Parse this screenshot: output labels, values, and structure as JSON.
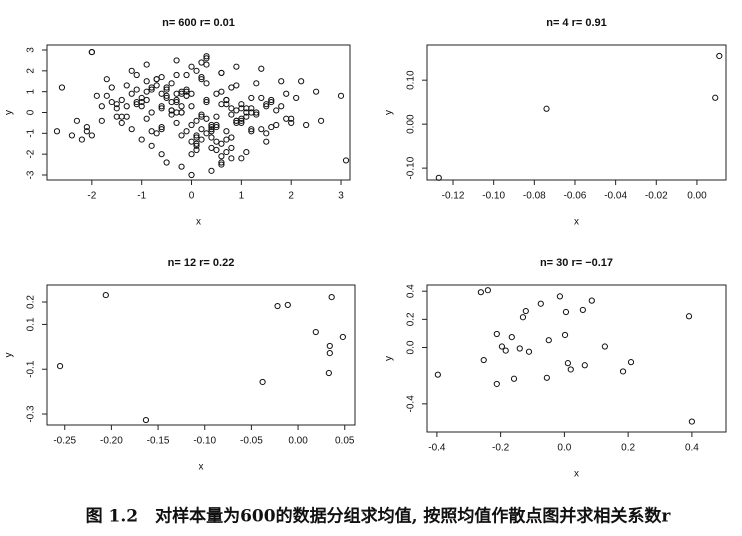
{
  "chart_data": [
    {
      "type": "scatter",
      "title": "n= 600  r= 0.01",
      "x_label": "x",
      "y_label": "y",
      "xlim": [
        -2.9,
        3.18
      ],
      "ylim": [
        -3.24,
        3.24
      ],
      "xticks": [
        -2,
        -1,
        0,
        1,
        2,
        3
      ],
      "yticks": [
        -3,
        -2,
        -1,
        0,
        1,
        2,
        3
      ],
      "color": "#111111",
      "x": [
        0.3,
        -1.2,
        0.8,
        -0.4,
        1.5,
        0.1,
        -0.9,
        2.1,
        -0.2,
        0.6,
        -1.7,
        0.4,
        1.1,
        -0.6,
        0.0,
        -2.6,
        0.9,
        -0.3,
        1.3,
        -1.0,
        0.5,
        -0.1,
        -1.4,
        0.7,
        1.8,
        -0.8,
        0.2,
        -0.5,
        1.0,
        -2.0,
        0.3,
        0.9,
        -1.1,
        0.6,
        -0.3,
        1.6,
        -0.7,
        0.1,
        2.5,
        -1.5,
        -0.2,
        0.4,
        1.2,
        -0.9,
        0.0,
        -1.8,
        0.7,
        -0.4,
        1.4,
        0.2,
        -1.3,
        0.8,
        -0.6,
        3.0,
        0.5,
        -0.1,
        -2.2,
        1.0,
        0.3,
        -0.8,
        1.7,
        -0.3,
        0.6,
        -1.0,
        0.1,
        1.9,
        -0.5,
        0.4,
        -1.6,
        0.9,
        -0.2,
        1.3,
        -2.4,
        0.7,
        -0.7,
        0.2,
        1.1,
        -1.2,
        0.0,
        0.5,
        -0.4,
        0.8,
        -1.9,
        1.5,
        0.3,
        -0.6,
        2.3,
        -0.1,
        0.6,
        -1.1,
        1.0,
        -0.3,
        0.4,
        -2.1,
        1.2,
        -0.8,
        0.1,
        0.9,
        -1.4,
        3.1,
        0.2,
        -0.9,
        1.4,
        -0.2,
        0.7,
        -1.5,
        0.0,
        1.8,
        -0.6,
        0.5,
        -1.0,
        0.3,
        2.0,
        -0.4,
        0.8,
        -1.7,
        1.1,
        -0.1,
        0.6,
        -2.0,
        -0.5,
        1.2,
        0.1,
        -1.3,
        0.9,
        -0.3,
        1.6,
        0.4,
        -0.8,
        2.6,
        -0.2,
        0.7,
        -1.1,
        0.2,
        1.3,
        -0.6,
        0.0,
        -2.7,
        0.5,
        1.0,
        -1.2,
        0.3,
        -0.4,
        1.7,
        0.6,
        -1.8,
        0.1,
        1.0,
        -0.7,
        0.4,
        -0.1,
        1.5,
        -1.4,
        0.8,
        -0.5,
        2.2,
        0.2,
        -0.9,
        1.2,
        -0.3,
        0.9,
        -1.6,
        0.5,
        -0.2,
        1.4,
        -0.7,
        0.3,
        -2.3,
        1.1,
        0.0,
        -0.4,
        0.7,
        -1.0,
        1.9,
        -0.6,
        0.2,
        -1.3,
        0.6,
        -0.1,
        1.5,
        -0.8,
        0.4,
        -1.5,
        1.0,
        0.1,
        -0.3,
        2.0,
        -1.1,
        0.8,
        -0.5,
        0.3,
        -2.0,
        1.2,
        -0.2,
        0.6,
        -0.9,
        1.6,
        0.0,
        -0.6,
        -2.1
      ],
      "values": [
        0.5,
        -0.8,
        1.2,
        0.1,
        -1.4,
        2.0,
        -0.3,
        0.7,
        -1.1,
        0.4,
        1.6,
        -0.6,
        0.2,
        -2.0,
        0.9,
        1.2,
        -0.5,
        0.0,
        1.4,
        -1.3,
        -0.2,
        1.8,
        0.6,
        -0.9,
        0.3,
        -1.6,
        2.4,
        0.8,
        -0.4,
        2.9,
        -1.0,
        0.1,
        1.1,
        -2.5,
        0.5,
        -0.7,
        1.3,
        -1.8,
        1.0,
        0.2,
        0.9,
        -1.2,
        0.0,
        1.5,
        -3.0,
        -0.4,
        0.6,
        -0.1,
        2.1,
        -0.8,
        0.3,
        -2.2,
        1.7,
        0.8,
        -0.6,
        1.0,
        -1.3,
        0.4,
        2.6,
        -0.9,
        0.1,
        -0.5,
        1.9,
        0.7,
        -1.5,
        -0.3,
        1.2,
        -0.8,
        0.5,
        2.2,
        -2.6,
        0.0,
        -1.1,
        0.6,
        1.6,
        -0.2,
        -1.9,
        0.9,
        0.3,
        -0.7,
        1.4,
        -0.1,
        0.8,
        -1.0,
        2.3,
        0.2,
        -0.6,
        1.1,
        -2.4,
        0.5,
        -0.3,
        1.8,
        -1.7,
        -0.9,
        0.7,
        0.0,
        -0.4,
        1.3,
        -0.2,
        -2.3,
        -1.3,
        0.6,
        -0.8,
        1.0,
        0.4,
        -0.2,
        -2.0,
        1.5,
        0.9,
        -1.4,
        0.3,
        2.7,
        -0.5,
        0.1,
        -1.2,
        0.8,
        0.0,
        -0.9,
        1.9,
        -1.1,
        0.7,
        0.2,
        -1.6,
        1.3,
        -0.4,
        2.5,
        0.6,
        -0.7,
        1.2,
        -0.4,
        0.0,
        -1.9,
        0.4,
        1.7,
        -0.1,
        -0.8,
        -1.4,
        -0.9,
        0.9,
        -2.2,
        2.0,
        -0.3,
        0.5,
        -0.6,
        1.0,
        0.3,
        -1.2,
        0.2,
        1.6,
        -2.8,
        0.8,
        0.4,
        -0.5,
        -1.7,
        1.1,
        1.5,
        -0.1,
        2.3,
        -0.9,
        0.6,
        -0.4,
        1.2,
        -1.8,
        0.3,
        0.7,
        -1.0,
        1.4,
        -0.4,
        -0.2,
        2.2,
        0.1,
        -1.3,
        0.5,
        0.9,
        -0.7,
        1.6,
        -0.2,
        -2.1,
        0.8,
        0.3,
        1.1,
        -0.9,
        0.4,
        -0.5,
        -1.1,
        0.9,
        -0.3,
        1.8,
        0.2,
        -2.4,
        0.6,
        2.9,
        -0.8,
        0.0,
        -1.5,
        1.0,
        0.5,
        -0.6,
        0.3,
        -0.7
      ]
    },
    {
      "type": "scatter",
      "title": "n= 4  r= 0.91",
      "x_label": "x",
      "y_label": "y",
      "xlim": [
        -0.1328,
        0.0143
      ],
      "ylim": [
        -0.127,
        0.18
      ],
      "xticks": [
        -0.12,
        {
          "value": -0.1,
          "label": "-0.10"
        },
        -0.08,
        -0.06,
        -0.04,
        -0.02,
        {
          "value": 0,
          "label": "0.00"
        }
      ],
      "yticks": [
        {
          "value": -0.1,
          "label": "-0.10"
        },
        {
          "value": 0,
          "label": "0.00"
        },
        {
          "value": 0.1,
          "label": "0.10"
        }
      ],
      "color": "#111111",
      "x": [
        -0.127,
        -0.074,
        0.009,
        0.011
      ],
      "values": [
        -0.122,
        0.035,
        0.06,
        0.155
      ]
    },
    {
      "type": "scatter",
      "title": "n= 12  r= 0.22",
      "x_label": "x",
      "y_label": "y",
      "xlim": [
        -0.269,
        0.061
      ],
      "ylim": [
        -0.349,
        0.276
      ],
      "xticks": [
        -0.25,
        {
          "value": -0.2,
          "label": "-0.20"
        },
        -0.15,
        {
          "value": -0.1,
          "label": "-0.10"
        },
        -0.05,
        {
          "value": 0,
          "label": "0.00"
        },
        0.05
      ],
      "yticks": [
        -0.3,
        -0.1,
        0.1,
        0.2
      ],
      "color": "#111111",
      "x": [
        -0.255,
        -0.206,
        -0.163,
        -0.038,
        -0.022,
        -0.011,
        0.019,
        0.034,
        0.034,
        0.036,
        0.048,
        0.033
      ],
      "values": [
        -0.086,
        0.231,
        -0.327,
        -0.157,
        0.182,
        0.187,
        0.066,
        0.004,
        -0.028,
        0.222,
        0.044,
        -0.117
      ]
    },
    {
      "type": "scatter",
      "title": "n= 30  r= −0.17",
      "x_label": "x",
      "y_label": "y",
      "xlim": [
        -0.431,
        0.507
      ],
      "ylim": [
        -0.6,
        0.444
      ],
      "xticks": [
        -0.4,
        -0.2,
        {
          "value": 0,
          "label": "0.0"
        },
        0.2,
        0.4
      ],
      "yticks": [
        -0.4,
        {
          "value": 0,
          "label": "0.0"
        },
        0.2,
        0.4
      ],
      "color": "#111111",
      "x": [
        -0.397,
        -0.253,
        -0.262,
        -0.24,
        -0.212,
        -0.196,
        -0.184,
        -0.165,
        -0.158,
        -0.13,
        -0.121,
        -0.074,
        -0.111,
        -0.055,
        -0.049,
        -0.014,
        0.002,
        0.005,
        0.011,
        0.02,
        0.058,
        0.064,
        0.086,
        0.127,
        0.184,
        0.209,
        0.391,
        0.4,
        -0.212,
        -0.14
      ],
      "values": [
        -0.193,
        -0.089,
        0.393,
        0.407,
        0.096,
        0.007,
        -0.022,
        0.074,
        -0.222,
        0.215,
        0.259,
        0.311,
        -0.03,
        -0.215,
        0.052,
        0.363,
        0.089,
        0.252,
        -0.111,
        -0.156,
        0.267,
        -0.126,
        0.333,
        0.007,
        -0.17,
        -0.104,
        0.222,
        -0.526,
        -0.259,
        -0.007
      ]
    }
  ],
  "caption": "图 1.2　对样本量为600的数据分组求均值, 按照均值作散点图并求相关系数r"
}
